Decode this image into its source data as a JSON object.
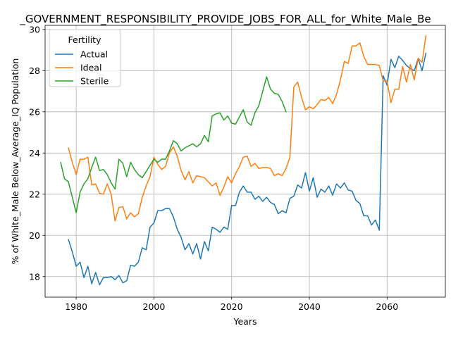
{
  "chart_data": {
    "type": "line",
    "title": "_GOVERNMENT_RESPONSIBILITY_PROVIDE_JOBS_FOR_ALL_for_White_Male_Be",
    "xlabel": "Years",
    "ylabel": "% of White_Male Below_Average_IQ Population",
    "xlim": [
      1972,
      2075
    ],
    "ylim": [
      17.0,
      30.2
    ],
    "xticks": [
      1980,
      2000,
      2020,
      2040,
      2060
    ],
    "yticks": [
      18,
      20,
      22,
      24,
      26,
      28,
      30
    ],
    "grid": true,
    "legend": {
      "title": "Fertility",
      "position": "upper-left"
    },
    "series": [
      {
        "name": "Actual",
        "color": "#1f77b4",
        "x": [
          1978,
          1979,
          1980,
          1981,
          1982,
          1983,
          1984,
          1985,
          1986,
          1987,
          1988,
          1989,
          1990,
          1991,
          1992,
          1993,
          1994,
          1995,
          1996,
          1997,
          1998,
          1999,
          2000,
          2001,
          2002,
          2003,
          2004,
          2005,
          2006,
          2007,
          2008,
          2009,
          2010,
          2011,
          2012,
          2013,
          2014,
          2015,
          2016,
          2017,
          2018,
          2019,
          2020,
          2021,
          2022,
          2023,
          2024,
          2025,
          2026,
          2027,
          2028,
          2029,
          2030,
          2031,
          2032,
          2033,
          2034,
          2035,
          2036,
          2037,
          2038,
          2039,
          2040,
          2041,
          2042,
          2043,
          2044,
          2045,
          2046,
          2047,
          2048,
          2049,
          2050,
          2051,
          2052,
          2053,
          2054,
          2055,
          2056,
          2057,
          2058,
          2059,
          2060,
          2061,
          2062,
          2063,
          2064,
          2065,
          2066,
          2067,
          2068,
          2069,
          2070
        ],
        "values": [
          19.8,
          19.2,
          18.5,
          18.7,
          17.95,
          18.5,
          17.65,
          18.2,
          17.6,
          17.95,
          17.95,
          18.0,
          17.85,
          18.05,
          17.7,
          17.8,
          18.55,
          18.5,
          18.7,
          19.4,
          19.3,
          20.4,
          20.6,
          21.2,
          21.2,
          21.3,
          21.3,
          20.9,
          20.3,
          19.9,
          19.3,
          19.6,
          19.1,
          19.6,
          18.85,
          19.7,
          19.25,
          20.4,
          20.3,
          20.15,
          20.4,
          20.3,
          21.45,
          21.45,
          22.1,
          22.4,
          22.1,
          22.1,
          21.75,
          21.9,
          21.65,
          21.85,
          21.6,
          21.5,
          21.05,
          21.2,
          21.1,
          21.8,
          21.9,
          22.45,
          22.3,
          23.05,
          22.15,
          22.8,
          21.85,
          22.25,
          22.1,
          22.4,
          21.95,
          22.5,
          22.3,
          22.55,
          22.2,
          22.15,
          21.7,
          21.55,
          20.95,
          20.95,
          20.5,
          20.75,
          20.25,
          27.75,
          27.3,
          28.55,
          28.15,
          28.7,
          28.5,
          28.25,
          28.1,
          28.0,
          28.6,
          28.0,
          28.85
        ]
      },
      {
        "name": "Ideal",
        "color": "#ff7f0e",
        "x": [
          1978,
          1979,
          1980,
          1981,
          1982,
          1983,
          1984,
          1985,
          1986,
          1987,
          1988,
          1989,
          1990,
          1991,
          1992,
          1993,
          1994,
          1995,
          1996,
          1997,
          1998,
          1999,
          2000,
          2001,
          2002,
          2003,
          2004,
          2005,
          2006,
          2007,
          2008,
          2009,
          2010,
          2011,
          2012,
          2013,
          2014,
          2015,
          2016,
          2017,
          2018,
          2019,
          2020,
          2021,
          2022,
          2023,
          2024,
          2025,
          2026,
          2027,
          2028,
          2029,
          2030,
          2031,
          2032,
          2033,
          2034,
          2035,
          2036,
          2037,
          2038,
          2039,
          2040,
          2041,
          2042,
          2043,
          2044,
          2045,
          2046,
          2047,
          2048,
          2049,
          2050,
          2051,
          2052,
          2053,
          2054,
          2055,
          2056,
          2057,
          2058,
          2059,
          2060,
          2061,
          2062,
          2063,
          2064,
          2065,
          2066,
          2067,
          2068,
          2069,
          2070
        ],
        "values": [
          24.25,
          23.55,
          22.95,
          23.7,
          23.7,
          23.8,
          22.45,
          22.5,
          22.05,
          22.0,
          22.5,
          22.0,
          20.7,
          21.35,
          21.4,
          20.8,
          21.1,
          20.9,
          21.05,
          21.85,
          22.4,
          22.85,
          23.8,
          23.45,
          23.2,
          23.35,
          24.0,
          24.3,
          23.85,
          23.15,
          22.7,
          23.1,
          22.55,
          22.9,
          22.85,
          22.8,
          22.6,
          22.4,
          22.55,
          21.95,
          22.35,
          22.85,
          22.55,
          23.0,
          23.35,
          23.8,
          23.85,
          23.35,
          23.5,
          23.25,
          23.3,
          23.3,
          23.25,
          22.9,
          23.0,
          22.9,
          23.25,
          23.8,
          27.2,
          27.45,
          26.7,
          26.1,
          26.25,
          26.15,
          26.35,
          26.6,
          26.55,
          26.7,
          26.4,
          26.85,
          27.55,
          28.45,
          28.35,
          29.2,
          29.2,
          29.35,
          28.7,
          28.3,
          28.3,
          28.3,
          28.25,
          27.5,
          27.5,
          26.45,
          27.1,
          27.1,
          28.2,
          27.45,
          28.3,
          27.55,
          28.6,
          28.4,
          29.7
        ]
      },
      {
        "name": "Sterile",
        "color": "#2ca02c",
        "x": [
          1976,
          1977,
          1978,
          1979,
          1980,
          1981,
          1982,
          1983,
          1984,
          1985,
          1986,
          1987,
          1988,
          1989,
          1990,
          1991,
          1992,
          1993,
          1994,
          1995,
          1996,
          1997,
          1998,
          1999,
          2000,
          2001,
          2002,
          2003,
          2004,
          2005,
          2006,
          2007,
          2008,
          2009,
          2010,
          2011,
          2012,
          2013,
          2014,
          2015,
          2016,
          2017,
          2018,
          2019,
          2020,
          2021,
          2022,
          2023,
          2024,
          2025,
          2026,
          2027,
          2028,
          2029,
          2030,
          2031,
          2032,
          2033,
          2034
        ],
        "values": [
          23.55,
          22.75,
          22.6,
          21.85,
          21.1,
          22.1,
          22.5,
          22.75,
          23.3,
          23.8,
          23.15,
          23.2,
          22.95,
          22.55,
          22.25,
          23.7,
          23.5,
          22.85,
          23.55,
          23.2,
          22.95,
          22.8,
          23.1,
          23.4,
          23.7,
          23.55,
          23.7,
          23.7,
          24.1,
          24.6,
          24.45,
          24.1,
          24.25,
          24.35,
          24.45,
          24.3,
          24.45,
          24.85,
          24.55,
          25.8,
          25.9,
          25.95,
          25.6,
          25.8,
          25.45,
          25.4,
          25.75,
          26.1,
          25.5,
          25.35,
          25.95,
          26.3,
          27.0,
          27.7,
          27.1,
          26.9,
          26.85,
          26.5,
          26.0
        ]
      }
    ]
  }
}
